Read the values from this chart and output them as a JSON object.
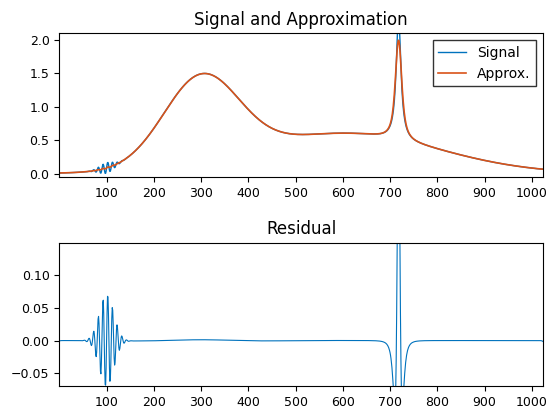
{
  "title1": "Signal and Approximation",
  "title2": "Residual",
  "legend_labels": [
    "Signal",
    "Approx."
  ],
  "signal_color": "#0072BD",
  "approx_color": "#D95319",
  "residual_color": "#0072BD",
  "xlim": [
    0,
    1024
  ],
  "ylim1": [
    -0.05,
    2.0
  ],
  "ylim2": [
    -0.07,
    0.15
  ],
  "xticks": [
    100,
    200,
    300,
    400,
    500,
    600,
    700,
    800,
    900,
    1000
  ],
  "yticks1": [
    0,
    0.5,
    1.0,
    1.5,
    2.0
  ],
  "yticks2": [
    -0.05,
    0,
    0.05,
    0.1
  ],
  "n_points": 1024,
  "background_color": "#ffffff",
  "title_fontsize": 12,
  "legend_fontsize": 10,
  "tick_fontsize": 9
}
